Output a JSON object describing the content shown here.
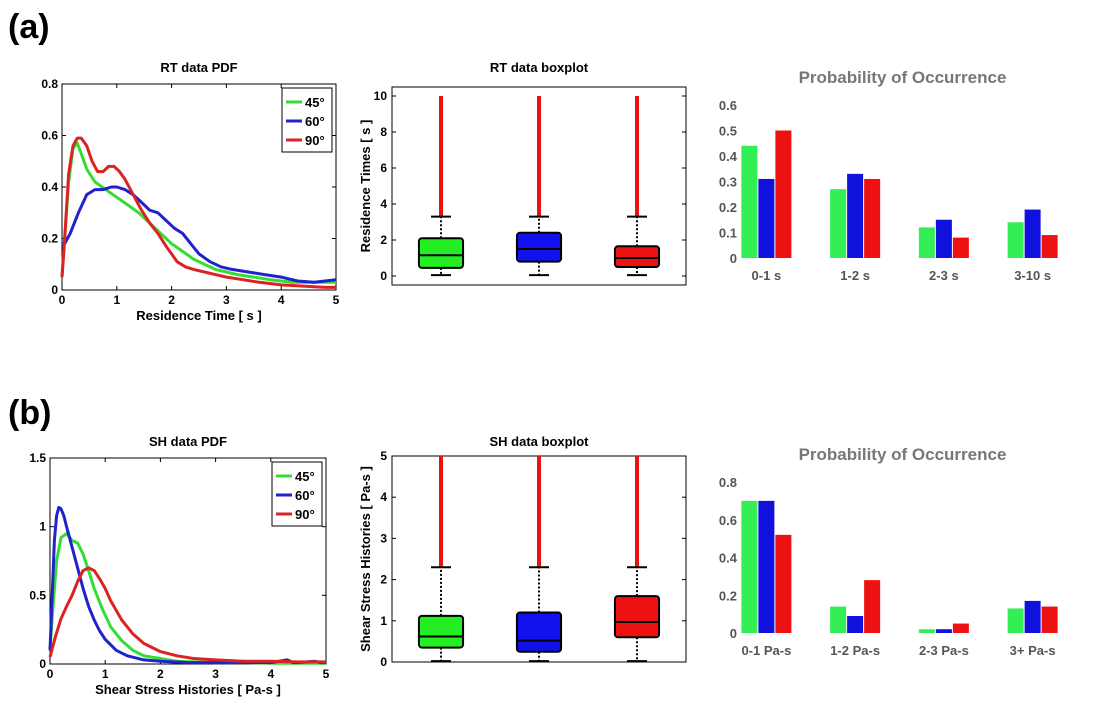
{
  "panel_labels": [
    "(a)",
    "(b)"
  ],
  "chart_data": [
    {
      "id": "rt-pdf",
      "type": "line",
      "title": "RT data PDF",
      "xlabel": "Residence Time [ s ]",
      "ylabel": "",
      "xlim": [
        0,
        5
      ],
      "ylim": [
        0,
        0.8
      ],
      "xticks": [
        "0",
        "1",
        "2",
        "3",
        "4",
        "5"
      ],
      "yticks": [
        "0",
        "0.2",
        "0.4",
        "0.6",
        "0.8"
      ],
      "legend_position": "top-right",
      "grid": false,
      "series": [
        {
          "name": "45°",
          "color": "#33dd33",
          "x": [
            0,
            0.05,
            0.12,
            0.2,
            0.28,
            0.35,
            0.45,
            0.6,
            0.8,
            1.0,
            1.2,
            1.4,
            1.6,
            1.8,
            2.0,
            2.2,
            2.4,
            2.6,
            2.8,
            3.0,
            3.2,
            3.5,
            3.8,
            4.0,
            4.2,
            4.5,
            4.8,
            5.0
          ],
          "y": [
            0.05,
            0.2,
            0.42,
            0.55,
            0.57,
            0.53,
            0.47,
            0.42,
            0.39,
            0.36,
            0.33,
            0.3,
            0.26,
            0.22,
            0.18,
            0.15,
            0.12,
            0.1,
            0.08,
            0.07,
            0.06,
            0.05,
            0.04,
            0.035,
            0.03,
            0.03,
            0.03,
            0.03
          ]
        },
        {
          "name": "60°",
          "color": "#2222cc",
          "x": [
            0,
            0.05,
            0.15,
            0.3,
            0.45,
            0.6,
            0.75,
            0.9,
            1.0,
            1.15,
            1.3,
            1.45,
            1.6,
            1.75,
            1.9,
            2.05,
            2.2,
            2.35,
            2.5,
            2.7,
            2.9,
            3.1,
            3.4,
            3.7,
            4.0,
            4.3,
            4.6,
            5.0
          ],
          "y": [
            0.18,
            0.18,
            0.22,
            0.3,
            0.37,
            0.39,
            0.39,
            0.4,
            0.4,
            0.39,
            0.37,
            0.34,
            0.31,
            0.3,
            0.27,
            0.24,
            0.22,
            0.18,
            0.14,
            0.11,
            0.09,
            0.08,
            0.07,
            0.06,
            0.05,
            0.035,
            0.03,
            0.04
          ]
        },
        {
          "name": "90°",
          "color": "#dd2222",
          "x": [
            0,
            0.05,
            0.12,
            0.2,
            0.28,
            0.35,
            0.45,
            0.55,
            0.65,
            0.75,
            0.85,
            0.95,
            1.05,
            1.15,
            1.3,
            1.45,
            1.6,
            1.75,
            1.9,
            2.0,
            2.1,
            2.25,
            2.4,
            2.6,
            2.8,
            3.0,
            3.3,
            3.6,
            4.0,
            4.4,
            4.8,
            5.0
          ],
          "y": [
            0.05,
            0.2,
            0.45,
            0.56,
            0.59,
            0.59,
            0.56,
            0.5,
            0.46,
            0.46,
            0.48,
            0.48,
            0.46,
            0.43,
            0.37,
            0.31,
            0.26,
            0.22,
            0.17,
            0.14,
            0.11,
            0.09,
            0.08,
            0.07,
            0.06,
            0.05,
            0.04,
            0.03,
            0.02,
            0.015,
            0.01,
            0.01
          ]
        }
      ]
    },
    {
      "id": "rt-box",
      "type": "boxplot",
      "title": "RT data boxplot",
      "xlabel": "",
      "ylabel": "Residence Times [ s ]",
      "ylim": [
        -0.5,
        10.5
      ],
      "yticks": [
        "0",
        "2",
        "4",
        "6",
        "8",
        "10"
      ],
      "boxes": [
        {
          "color": "#22ee22",
          "min": 0.05,
          "q1": 0.45,
          "median": 1.15,
          "q3": 2.1,
          "whisker_high": 3.3,
          "outlier_max": 10
        },
        {
          "color": "#1111ee",
          "min": 0.05,
          "q1": 0.8,
          "median": 1.5,
          "q3": 2.4,
          "whisker_high": 3.3,
          "outlier_max": 10
        },
        {
          "color": "#ee1111",
          "min": 0.05,
          "q1": 0.5,
          "median": 1.0,
          "q3": 1.65,
          "whisker_high": 3.3,
          "outlier_max": 10
        }
      ]
    },
    {
      "id": "rt-prob",
      "type": "bar",
      "title": "Probability of Occurrence",
      "categories": [
        "0-1 s",
        "1-2 s",
        "2-3 s",
        "3-10 s"
      ],
      "ylim": [
        0,
        0.6
      ],
      "yticks": [
        "0",
        "0.1",
        "0.2",
        "0.3",
        "0.4",
        "0.5",
        "0.6"
      ],
      "series": [
        {
          "color": "#33ee55",
          "values": [
            0.44,
            0.27,
            0.12,
            0.14
          ]
        },
        {
          "color": "#1111dd",
          "values": [
            0.31,
            0.33,
            0.15,
            0.19
          ]
        },
        {
          "color": "#ee1111",
          "values": [
            0.5,
            0.31,
            0.08,
            0.09
          ]
        }
      ]
    },
    {
      "id": "sh-pdf",
      "type": "line",
      "title": "SH data PDF",
      "xlabel": "Shear Stress Histories [ Pa-s ]",
      "ylabel": "",
      "xlim": [
        0,
        5
      ],
      "ylim": [
        0,
        1.5
      ],
      "xticks": [
        "0",
        "1",
        "2",
        "3",
        "4",
        "5"
      ],
      "yticks": [
        "0",
        "0.5",
        "1",
        "1.5"
      ],
      "legend_position": "top-right",
      "grid": false,
      "series": [
        {
          "name": "45°",
          "color": "#33dd33",
          "x": [
            0,
            0.05,
            0.12,
            0.2,
            0.3,
            0.4,
            0.5,
            0.6,
            0.7,
            0.8,
            0.95,
            1.1,
            1.3,
            1.5,
            1.7,
            2.0,
            2.3,
            2.6,
            3.0,
            3.5,
            4.0,
            4.5,
            5.0
          ],
          "y": [
            0.1,
            0.4,
            0.75,
            0.92,
            0.95,
            0.9,
            0.88,
            0.8,
            0.68,
            0.55,
            0.4,
            0.27,
            0.17,
            0.1,
            0.06,
            0.04,
            0.02,
            0.015,
            0.01,
            0.01,
            0.005,
            0.005,
            0.005
          ]
        },
        {
          "name": "60°",
          "color": "#2222cc",
          "x": [
            0,
            0.04,
            0.08,
            0.12,
            0.16,
            0.2,
            0.25,
            0.3,
            0.4,
            0.5,
            0.6,
            0.7,
            0.8,
            0.9,
            1.0,
            1.2,
            1.4,
            1.7,
            2.0,
            2.5,
            3.0,
            3.5,
            4.0,
            4.3,
            4.4,
            4.5,
            4.8,
            4.9,
            5.0
          ],
          "y": [
            0.1,
            0.5,
            0.9,
            1.08,
            1.14,
            1.13,
            1.08,
            1.0,
            0.85,
            0.7,
            0.55,
            0.42,
            0.32,
            0.24,
            0.18,
            0.1,
            0.06,
            0.03,
            0.02,
            0.01,
            0.01,
            0.01,
            0.01,
            0.03,
            0.01,
            0.01,
            0.02,
            0.01,
            0.01
          ]
        },
        {
          "name": "90°",
          "color": "#dd2222",
          "x": [
            0,
            0.1,
            0.2,
            0.3,
            0.4,
            0.5,
            0.6,
            0.7,
            0.8,
            0.9,
            1.0,
            1.1,
            1.3,
            1.5,
            1.7,
            2.0,
            2.3,
            2.6,
            3.0,
            3.5,
            4.0,
            4.5,
            5.0
          ],
          "y": [
            0.05,
            0.2,
            0.33,
            0.42,
            0.5,
            0.6,
            0.68,
            0.7,
            0.68,
            0.62,
            0.55,
            0.46,
            0.32,
            0.22,
            0.15,
            0.09,
            0.06,
            0.04,
            0.03,
            0.02,
            0.02,
            0.015,
            0.015
          ]
        }
      ]
    },
    {
      "id": "sh-box",
      "type": "boxplot",
      "title": "SH data boxplot",
      "xlabel": "",
      "ylabel": "Shear Stress Histories [ Pa-s ]",
      "ylim": [
        0,
        5
      ],
      "yticks": [
        "0",
        "1",
        "2",
        "3",
        "4",
        "5"
      ],
      "boxes": [
        {
          "color": "#22ee22",
          "min": 0.02,
          "q1": 0.35,
          "median": 0.62,
          "q3": 1.12,
          "whisker_high": 2.3,
          "outlier_max": 5
        },
        {
          "color": "#1111ee",
          "min": 0.02,
          "q1": 0.25,
          "median": 0.52,
          "q3": 1.2,
          "whisker_high": 2.3,
          "outlier_max": 5
        },
        {
          "color": "#ee1111",
          "min": 0.02,
          "q1": 0.6,
          "median": 0.97,
          "q3": 1.6,
          "whisker_high": 2.3,
          "outlier_max": 5
        }
      ]
    },
    {
      "id": "sh-prob",
      "type": "bar",
      "title": "Probability of Occurrence",
      "categories": [
        "0-1 Pa-s",
        "1-2 Pa-s",
        "2-3 Pa-s",
        "3+ Pa-s"
      ],
      "ylim": [
        0,
        0.8
      ],
      "yticks": [
        "0",
        "0.2",
        "0.4",
        "0.6",
        "0.8"
      ],
      "series": [
        {
          "color": "#33ee55",
          "values": [
            0.7,
            0.14,
            0.02,
            0.13
          ]
        },
        {
          "color": "#1111dd",
          "values": [
            0.7,
            0.09,
            0.02,
            0.17
          ]
        },
        {
          "color": "#ee1111",
          "values": [
            0.52,
            0.28,
            0.05,
            0.14
          ]
        }
      ]
    }
  ]
}
